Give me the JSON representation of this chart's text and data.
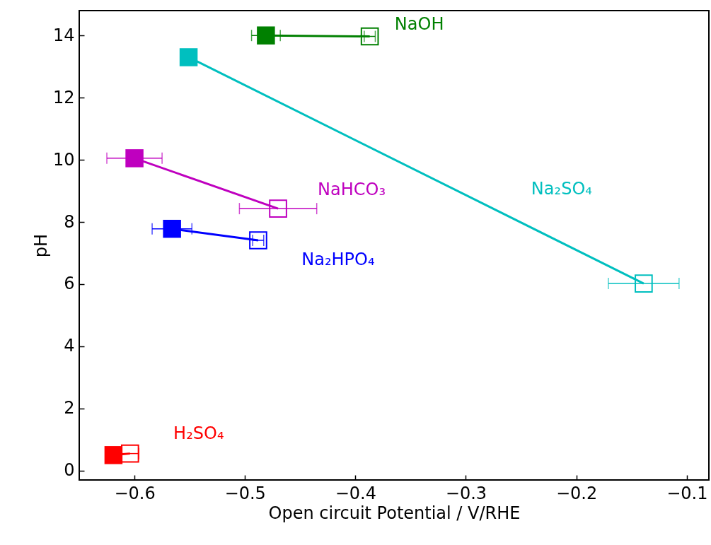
{
  "chart_data": {
    "type": "line",
    "xlabel": "Open circuit Potential / V/RHE",
    "ylabel": "pH",
    "marker": "square",
    "xlim": [
      -0.65,
      -0.08
    ],
    "xticks": [
      {
        "value": -0.6,
        "label": "−0.6"
      },
      {
        "value": -0.5,
        "label": "−0.5"
      },
      {
        "value": -0.4,
        "label": "−0.4"
      },
      {
        "value": -0.3,
        "label": "−0.3"
      },
      {
        "value": -0.2,
        "label": "−0.2"
      },
      {
        "value": -0.1,
        "label": "−0.1"
      }
    ],
    "ylim": [
      -0.3,
      14.8
    ],
    "yticks": [
      0,
      2,
      4,
      6,
      8,
      10,
      12,
      14
    ],
    "series": [
      {
        "name": "NaOH",
        "color": "#008000",
        "x": [
          -0.481,
          -0.387
        ],
        "values": [
          14.0,
          13.97
        ],
        "xerrors": [
          0.013,
          0.005
        ]
      },
      {
        "name": "Na₂SO₄",
        "color": "#00bfbf",
        "x": [
          -0.551,
          -0.139
        ],
        "values": [
          13.3,
          6.02
        ],
        "xerrors": [
          0.005,
          0.032
        ]
      },
      {
        "name": "NaHCO₃",
        "color": "#bf00bf",
        "x": [
          -0.6,
          -0.47
        ],
        "values": [
          10.05,
          8.43
        ],
        "xerrors": [
          0.025,
          0.035
        ]
      },
      {
        "name": "Na₂HPO₄",
        "color": "#0000ff",
        "x": [
          -0.566,
          -0.488
        ],
        "values": [
          7.78,
          7.41
        ],
        "xerrors": [
          0.018,
          0.005
        ]
      },
      {
        "name": "H₂SO₄",
        "color": "#ff0000",
        "x": [
          -0.619,
          -0.604
        ],
        "values": [
          0.5,
          0.55
        ],
        "xerrors": [
          null,
          0.008
        ]
      }
    ]
  }
}
